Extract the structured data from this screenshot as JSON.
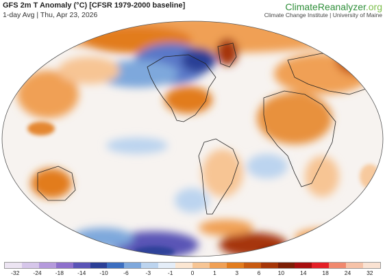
{
  "header": {
    "title": "GFS 2m T Anomaly (°C) [CFSR 1979-2000 baseline]",
    "subtitle": "1-day Avg | Thu, Apr 23, 2026"
  },
  "brand": {
    "name_main": "ClimateReanalyzer",
    "name_tld": ".org",
    "sub": "Climate Change Institute | University of Maine"
  },
  "legend": {
    "ticks": [
      "-32",
      "-24",
      "-18",
      "-14",
      "-10",
      "-6",
      "-3",
      "-1",
      "0",
      "1",
      "3",
      "6",
      "10",
      "14",
      "18",
      "24",
      "32"
    ],
    "colors": [
      "#ece4f2",
      "#d6c6ea",
      "#b59adc",
      "#8e70cc",
      "#5a54b6",
      "#2b3f96",
      "#3c6ec0",
      "#7ea8dc",
      "#bcd4ef",
      "#e4edf8",
      "#fbe6d2",
      "#f7c594",
      "#f0a055",
      "#e27c1e",
      "#c85a10",
      "#a63608",
      "#7c1e05",
      "#a80e0e",
      "#e41f26",
      "#f0886e",
      "#f6c2a8",
      "#fae2d2"
    ]
  }
}
